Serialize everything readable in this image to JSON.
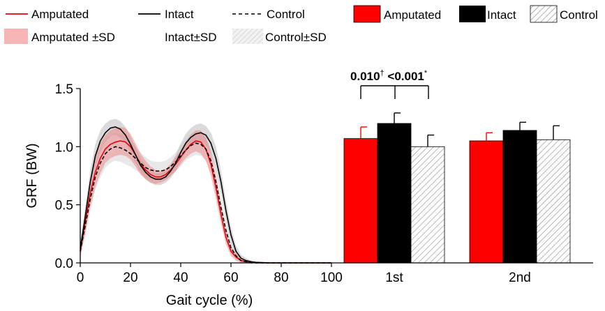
{
  "chart_data": [
    {
      "type": "line",
      "xlabel": "Gait cycle (%)",
      "ylabel": "GRF (BW)",
      "xlim": [
        0,
        100
      ],
      "ylim": [
        0,
        1.5
      ],
      "xticks": [
        "0",
        "20",
        "40",
        "60",
        "80",
        "100"
      ],
      "yticks": [
        "0.0",
        "0.5",
        "1.0",
        "1.5"
      ],
      "x": [
        0,
        2,
        4,
        6,
        8,
        10,
        12,
        14,
        16,
        18,
        20,
        22,
        24,
        26,
        28,
        30,
        32,
        34,
        36,
        38,
        40,
        42,
        44,
        46,
        48,
        50,
        52,
        54,
        56,
        58,
        60,
        62,
        64,
        66,
        68,
        70,
        75,
        80,
        90,
        100
      ],
      "series": [
        {
          "name": "Amputated",
          "style": "solid",
          "color": "#e8000b",
          "values": [
            0.1,
            0.35,
            0.6,
            0.78,
            0.9,
            0.98,
            1.02,
            1.04,
            1.05,
            1.04,
            1.0,
            0.93,
            0.85,
            0.8,
            0.76,
            0.74,
            0.74,
            0.76,
            0.8,
            0.85,
            0.91,
            0.97,
            1.02,
            1.05,
            1.04,
            0.98,
            0.85,
            0.65,
            0.42,
            0.22,
            0.1,
            0.05,
            0.02,
            0.01,
            0.005,
            0.0,
            0.0,
            0.0,
            0.0,
            0.0
          ],
          "sd": [
            0.05,
            0.1,
            0.12,
            0.13,
            0.13,
            0.12,
            0.12,
            0.12,
            0.12,
            0.12,
            0.11,
            0.1,
            0.09,
            0.08,
            0.07,
            0.06,
            0.05,
            0.05,
            0.05,
            0.06,
            0.06,
            0.07,
            0.08,
            0.09,
            0.1,
            0.1,
            0.1,
            0.1,
            0.08,
            0.06,
            0.04,
            0.03,
            0.02,
            0.01,
            0.01,
            0.0,
            0.0,
            0.0,
            0.0,
            0.0
          ]
        },
        {
          "name": "Intact",
          "style": "solid",
          "color": "#000000",
          "values": [
            0.12,
            0.4,
            0.7,
            0.92,
            1.05,
            1.12,
            1.16,
            1.17,
            1.15,
            1.1,
            1.02,
            0.93,
            0.84,
            0.78,
            0.74,
            0.72,
            0.72,
            0.74,
            0.79,
            0.86,
            0.95,
            1.03,
            1.08,
            1.11,
            1.12,
            1.1,
            1.03,
            0.9,
            0.7,
            0.45,
            0.24,
            0.1,
            0.04,
            0.02,
            0.01,
            0.005,
            0.0,
            0.0,
            0.0,
            0.0
          ],
          "sd": [
            0.05,
            0.08,
            0.1,
            0.1,
            0.09,
            0.08,
            0.07,
            0.07,
            0.07,
            0.07,
            0.07,
            0.07,
            0.06,
            0.06,
            0.05,
            0.05,
            0.05,
            0.05,
            0.06,
            0.07,
            0.08,
            0.08,
            0.08,
            0.08,
            0.08,
            0.08,
            0.09,
            0.1,
            0.1,
            0.09,
            0.07,
            0.05,
            0.03,
            0.02,
            0.01,
            0.0,
            0.0,
            0.0,
            0.0,
            0.0
          ]
        },
        {
          "name": "Control",
          "style": "dashed",
          "color": "#000000",
          "values": [
            0.1,
            0.32,
            0.55,
            0.74,
            0.86,
            0.94,
            0.98,
            1.0,
            0.99,
            0.97,
            0.94,
            0.9,
            0.86,
            0.82,
            0.8,
            0.79,
            0.79,
            0.8,
            0.83,
            0.87,
            0.92,
            0.97,
            1.01,
            1.03,
            1.02,
            0.98,
            0.88,
            0.7,
            0.48,
            0.28,
            0.13,
            0.06,
            0.02,
            0.01,
            0.0,
            0.0,
            0.0,
            0.0,
            0.0,
            0.0
          ],
          "sd": [
            0.05,
            0.08,
            0.1,
            0.11,
            0.12,
            0.12,
            0.12,
            0.12,
            0.12,
            0.12,
            0.11,
            0.1,
            0.09,
            0.09,
            0.08,
            0.08,
            0.08,
            0.08,
            0.08,
            0.08,
            0.09,
            0.09,
            0.1,
            0.1,
            0.1,
            0.1,
            0.1,
            0.1,
            0.09,
            0.07,
            0.05,
            0.03,
            0.02,
            0.01,
            0.0,
            0.0,
            0.0,
            0.0,
            0.0,
            0.0
          ]
        }
      ]
    },
    {
      "type": "bar",
      "categories": [
        "1st",
        "2nd"
      ],
      "series": [
        {
          "name": "Amputated",
          "fill": "#ff0000",
          "values": [
            1.07,
            1.05
          ],
          "sd": [
            0.1,
            0.07
          ]
        },
        {
          "name": "Intact",
          "fill": "#000000",
          "values": [
            1.2,
            1.14
          ],
          "sd": [
            0.09,
            0.07
          ]
        },
        {
          "name": "Control",
          "fill": "hatched",
          "values": [
            1.0,
            1.06
          ],
          "sd": [
            0.1,
            0.12
          ]
        }
      ],
      "annotations": [
        {
          "text": "0.010",
          "marker": "†"
        },
        {
          "text": "<0.001",
          "marker": "*"
        }
      ]
    }
  ],
  "legend": {
    "line": {
      "amputated": "Amputated",
      "intact": "Intact",
      "control": "Control",
      "amputated_sd": "Amputated ±SD",
      "intact_sd": "Intact±SD",
      "control_sd": "Control±SD"
    },
    "bar": {
      "amputated": "Amputated",
      "intact": "Intact",
      "control": "Control"
    }
  },
  "colors": {
    "amputated": "#e8000b",
    "amputated_band": "#f7b5b5",
    "intact": "#000000",
    "bar_red": "#ff0000",
    "band_grey": "#d9d9d9"
  }
}
